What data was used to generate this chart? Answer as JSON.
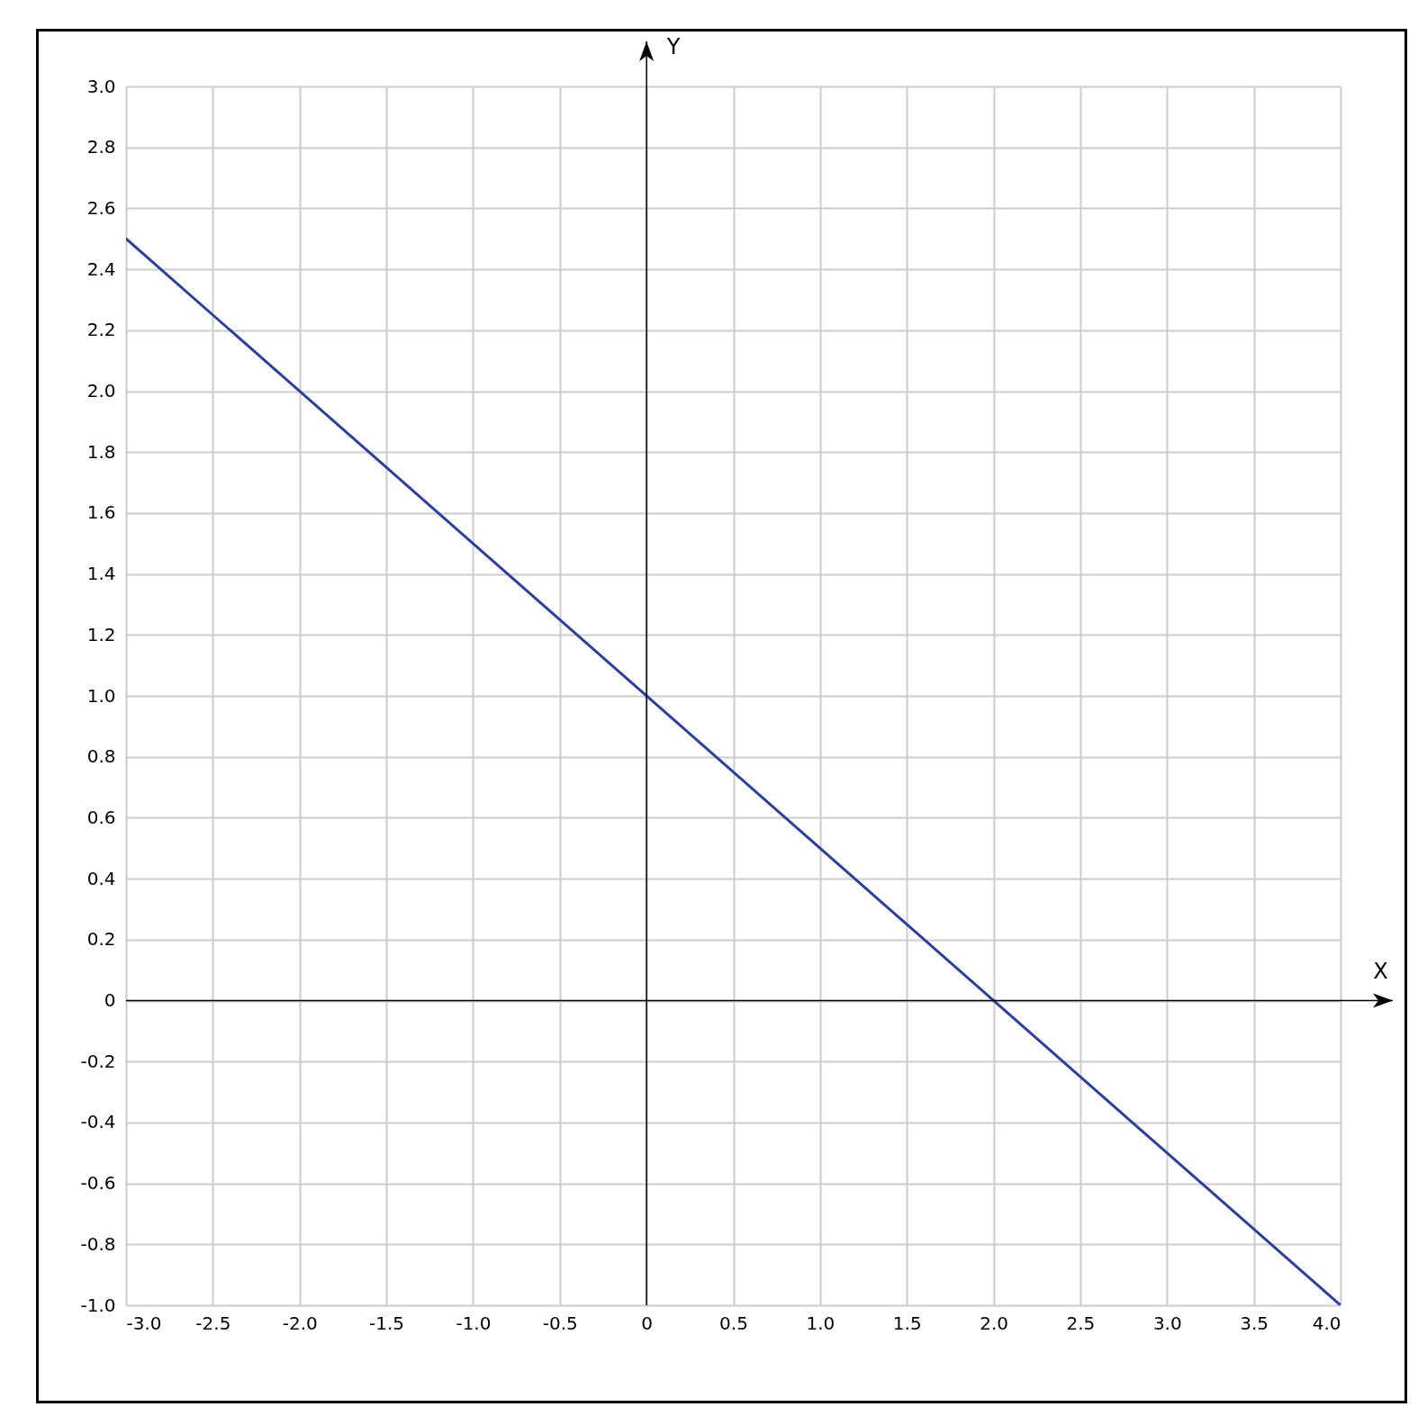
{
  "chart_data": {
    "type": "line",
    "xlabel": "X",
    "ylabel": "Y",
    "series": [
      {
        "color": "#2b3fa0",
        "x": [
          -3,
          4
        ],
        "values": [
          2.5,
          -1
        ]
      }
    ],
    "xlim": [
      -3,
      4
    ],
    "ylim": [
      -1,
      3
    ],
    "xticks": [
      {
        "value": -3,
        "label": "-3.0"
      },
      -2.5,
      {
        "value": -2,
        "label": "-2.0"
      },
      -1.5,
      {
        "value": -1,
        "label": "-1.0"
      },
      -0.5,
      0,
      0.5,
      {
        "value": 1,
        "label": "1.0"
      },
      1.5,
      {
        "value": 2,
        "label": "2.0"
      },
      2.5,
      {
        "value": 3,
        "label": "3.0"
      },
      3.5,
      {
        "value": 4,
        "label": "4.0"
      }
    ],
    "yticks": [
      {
        "value": -1,
        "label": "-1.0"
      },
      -0.8,
      -0.6,
      -0.4,
      -0.2,
      0,
      0.2,
      0.4,
      0.6,
      0.8,
      {
        "value": 1,
        "label": "1.0"
      },
      1.2,
      1.4,
      1.6,
      1.8,
      {
        "value": 2,
        "label": "2.0"
      },
      2.2,
      2.4,
      2.6,
      2.8,
      {
        "value": 3,
        "label": "3.0"
      }
    ],
    "grid": true,
    "line_style": "solid",
    "marker": "none"
  }
}
